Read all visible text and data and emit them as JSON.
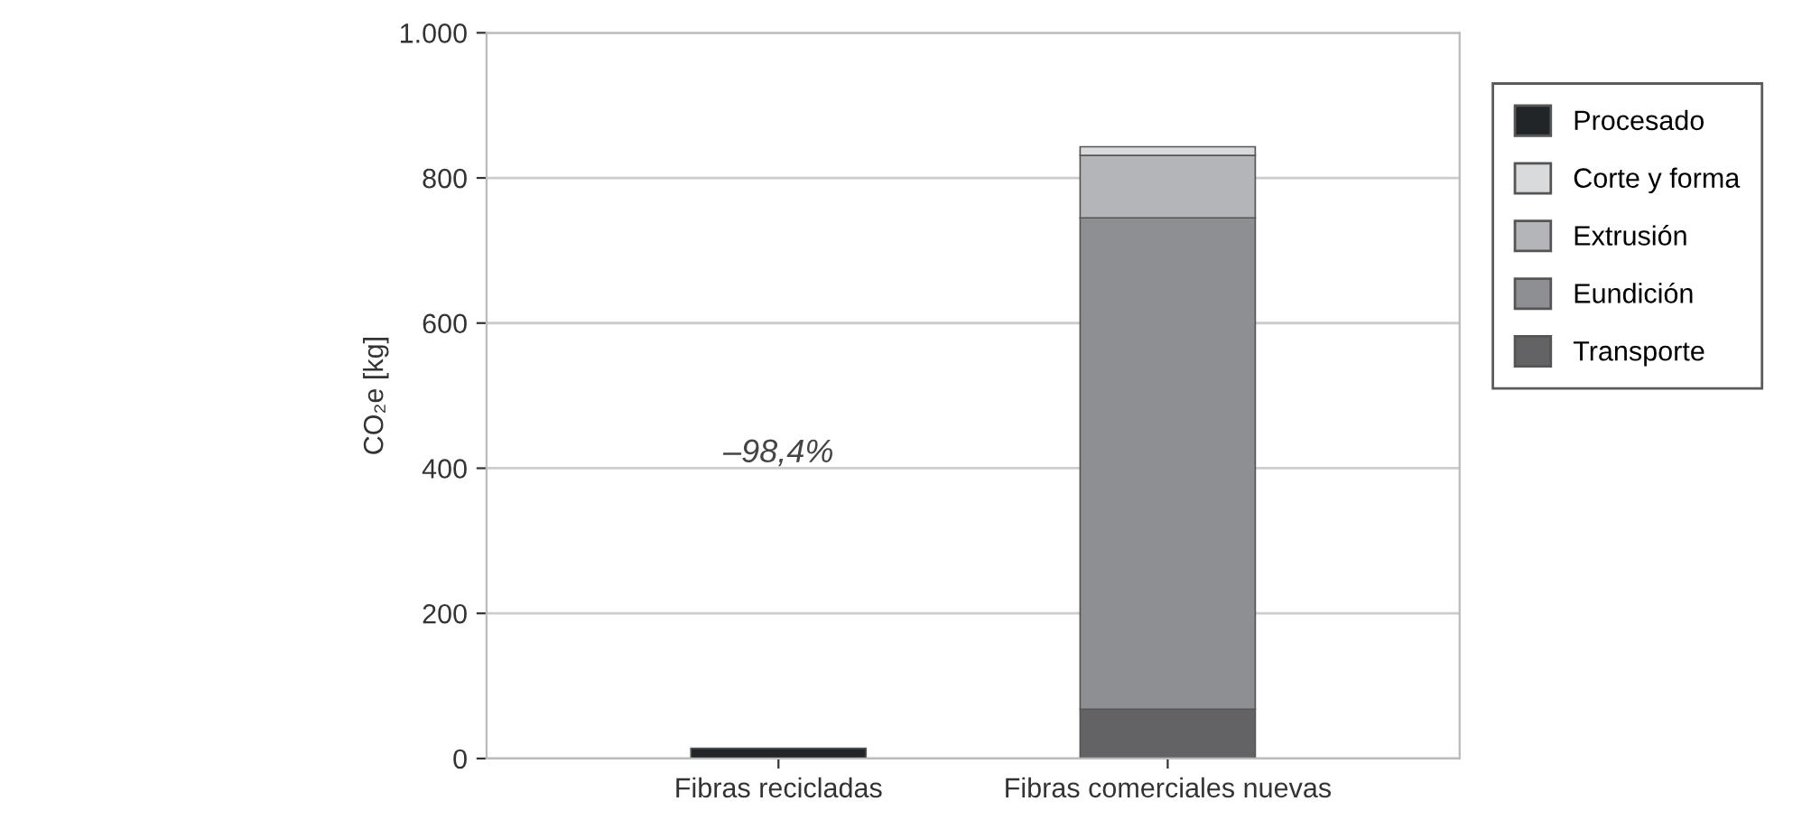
{
  "chart_data": {
    "type": "bar",
    "stacked": true,
    "ylabel": "CO₂e [kg]",
    "categories": [
      "Fibras recicladas",
      "Fibras comerciales nuevas"
    ],
    "series": [
      {
        "name": "Transporte",
        "color": "#636366",
        "values": [
          null,
          68
        ]
      },
      {
        "name": "Eundición",
        "color": "#8e8f92",
        "values": [
          null,
          677
        ]
      },
      {
        "name": "Extrusión",
        "color": "#b4b5b8",
        "values": [
          null,
          86
        ]
      },
      {
        "name": "Corte y forma",
        "color": "#d9dadc",
        "values": [
          null,
          12
        ]
      },
      {
        "name": "Procesado",
        "color": "#222528",
        "values": [
          14,
          null
        ]
      }
    ],
    "ylim": [
      0,
      1000
    ],
    "yticks": [
      0,
      200,
      400,
      600,
      800,
      {
        "value": 1000,
        "label": "1.000"
      }
    ],
    "grid": "y",
    "legend": "right",
    "annotations": [
      "–98,4%"
    ]
  }
}
